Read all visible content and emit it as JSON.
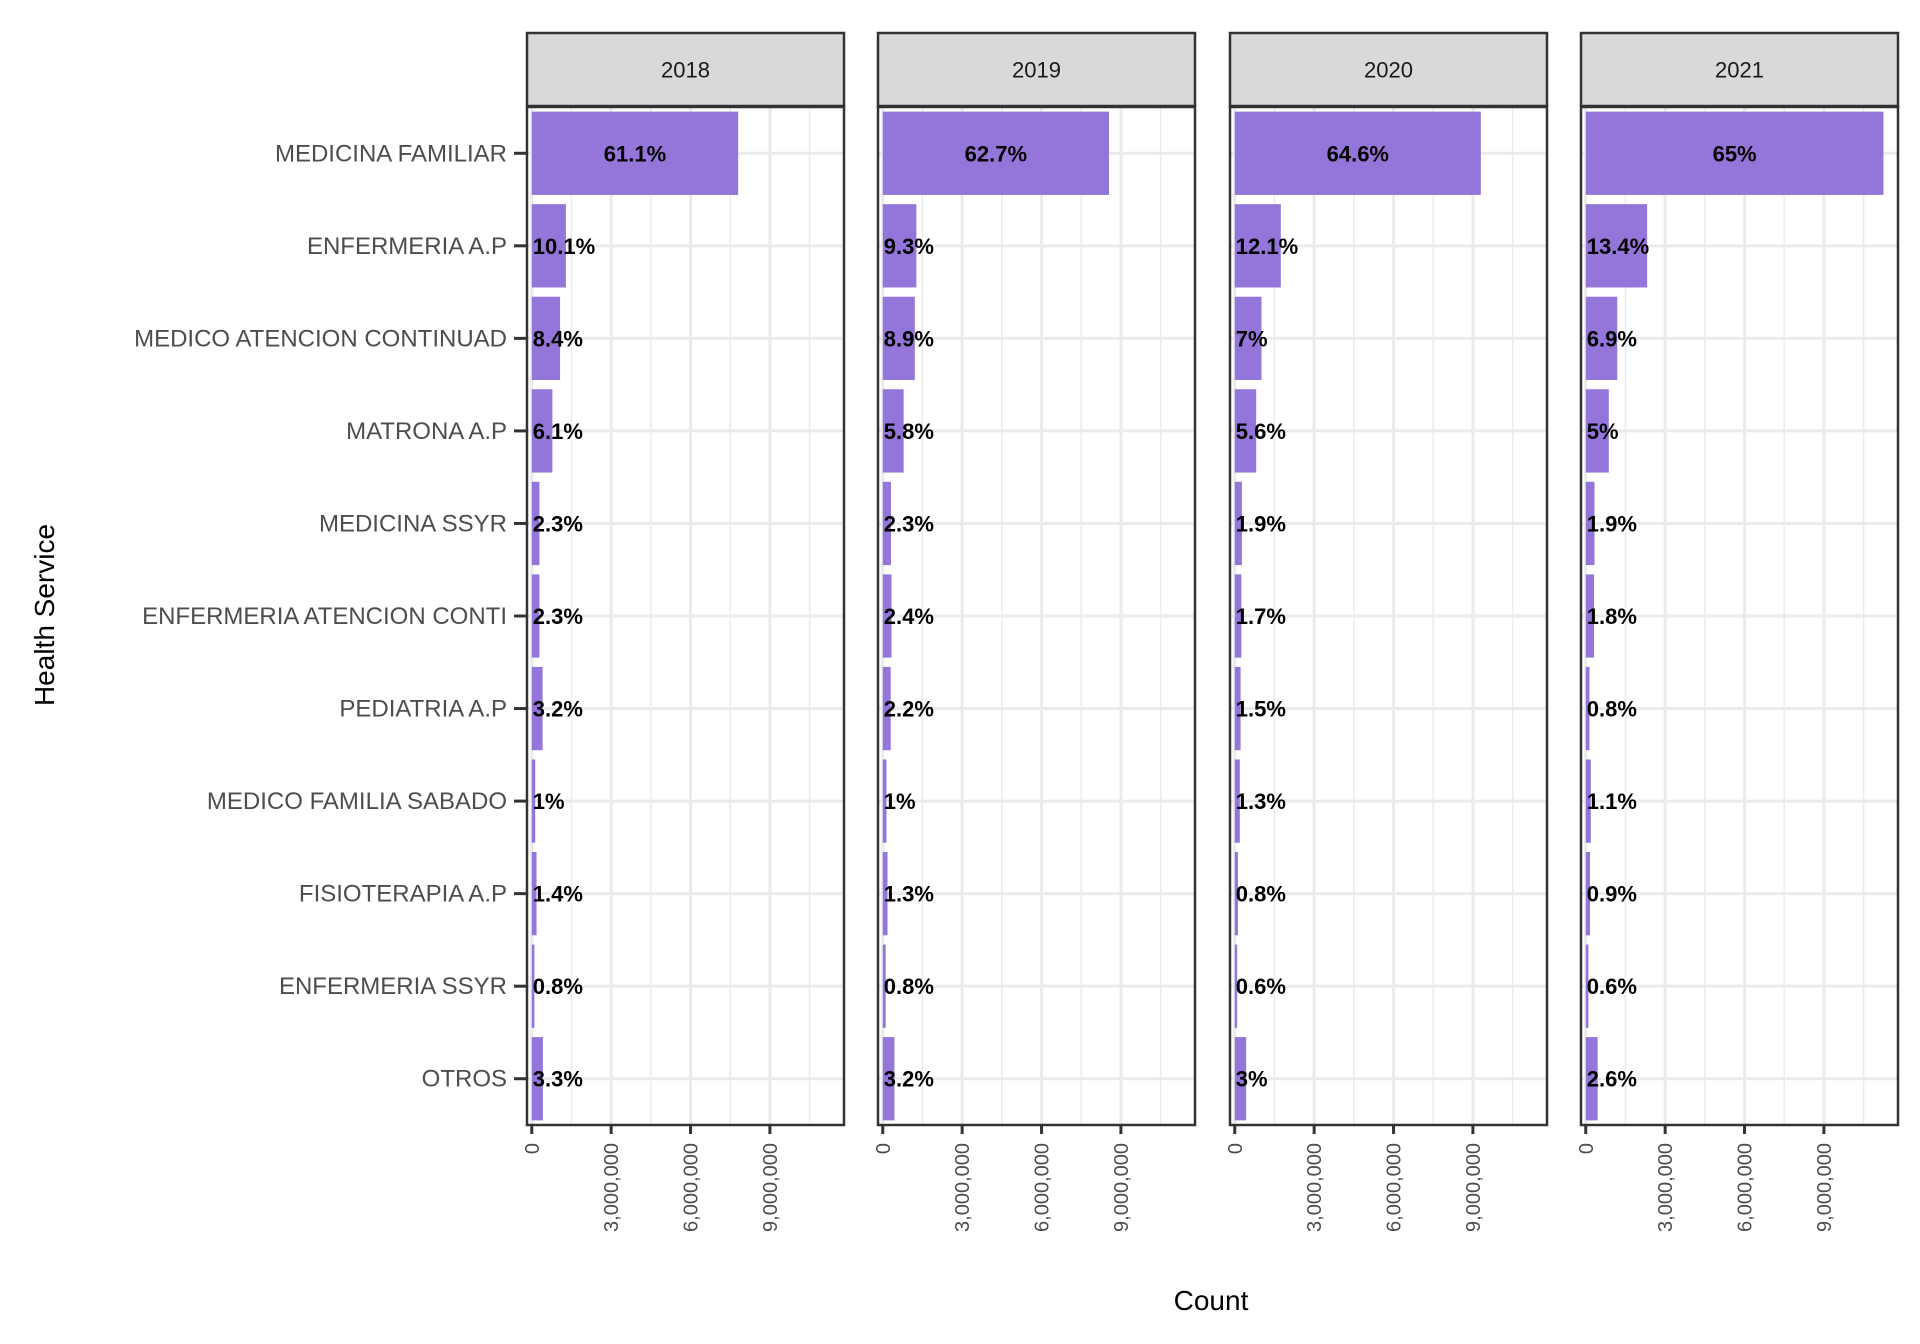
{
  "chart_data": {
    "type": "bar",
    "orientation": "horizontal",
    "xlabel": "Count",
    "ylabel": "Health Service",
    "xlim": [
      -180000,
      11800000
    ],
    "xticks": [
      {
        "value": 0,
        "label": "0"
      },
      {
        "value": 3000000,
        "label": "3,000,000"
      },
      {
        "value": 6000000,
        "label": "6,000,000"
      },
      {
        "value": 9000000,
        "label": "9,000,000"
      }
    ],
    "grid": true,
    "bar_color": "#9475D9",
    "categories": [
      "MEDICINA FAMILIAR",
      "ENFERMERIA A.P",
      "MEDICO ATENCION CONTINUAD",
      "MATRONA A.P",
      "MEDICINA SSYR",
      "ENFERMERIA ATENCION CONTI",
      "PEDIATRIA A.P",
      "MEDICO  FAMILIA SABADO",
      "FISIOTERAPIA A.P",
      "ENFERMERIA SSYR",
      "OTROS"
    ],
    "facets": [
      {
        "name": "2018",
        "values": [
          7800000,
          1290000,
          1070000,
          780000,
          290000,
          290000,
          410000,
          130000,
          180000,
          100000,
          420000
        ],
        "labels": [
          "61.1%",
          "10.1%",
          "8.4%",
          "6.1%",
          "2.3%",
          "2.3%",
          "3.2%",
          "1%",
          "1.4%",
          "0.8%",
          "3.3%"
        ]
      },
      {
        "name": "2019",
        "values": [
          8550000,
          1270000,
          1210000,
          790000,
          310000,
          330000,
          300000,
          140000,
          180000,
          110000,
          440000
        ],
        "labels": [
          "62.7%",
          "9.3%",
          "8.9%",
          "5.8%",
          "2.3%",
          "2.4%",
          "2.2%",
          "1%",
          "1.3%",
          "0.8%",
          "3.2%"
        ]
      },
      {
        "name": "2020",
        "values": [
          9300000,
          1740000,
          1010000,
          810000,
          270000,
          250000,
          220000,
          190000,
          120000,
          90000,
          430000
        ],
        "labels": [
          "64.6%",
          "12.1%",
          "7%",
          "5.6%",
          "1.9%",
          "1.7%",
          "1.5%",
          "1.3%",
          "0.8%",
          "0.6%",
          "3%"
        ]
      },
      {
        "name": "2021",
        "values": [
          11250000,
          2320000,
          1190000,
          870000,
          330000,
          310000,
          140000,
          190000,
          160000,
          100000,
          450000
        ],
        "labels": [
          "65%",
          "13.4%",
          "6.9%",
          "5%",
          "1.9%",
          "1.8%",
          "0.8%",
          "1.1%",
          "0.9%",
          "0.6%",
          "2.6%"
        ]
      }
    ]
  }
}
